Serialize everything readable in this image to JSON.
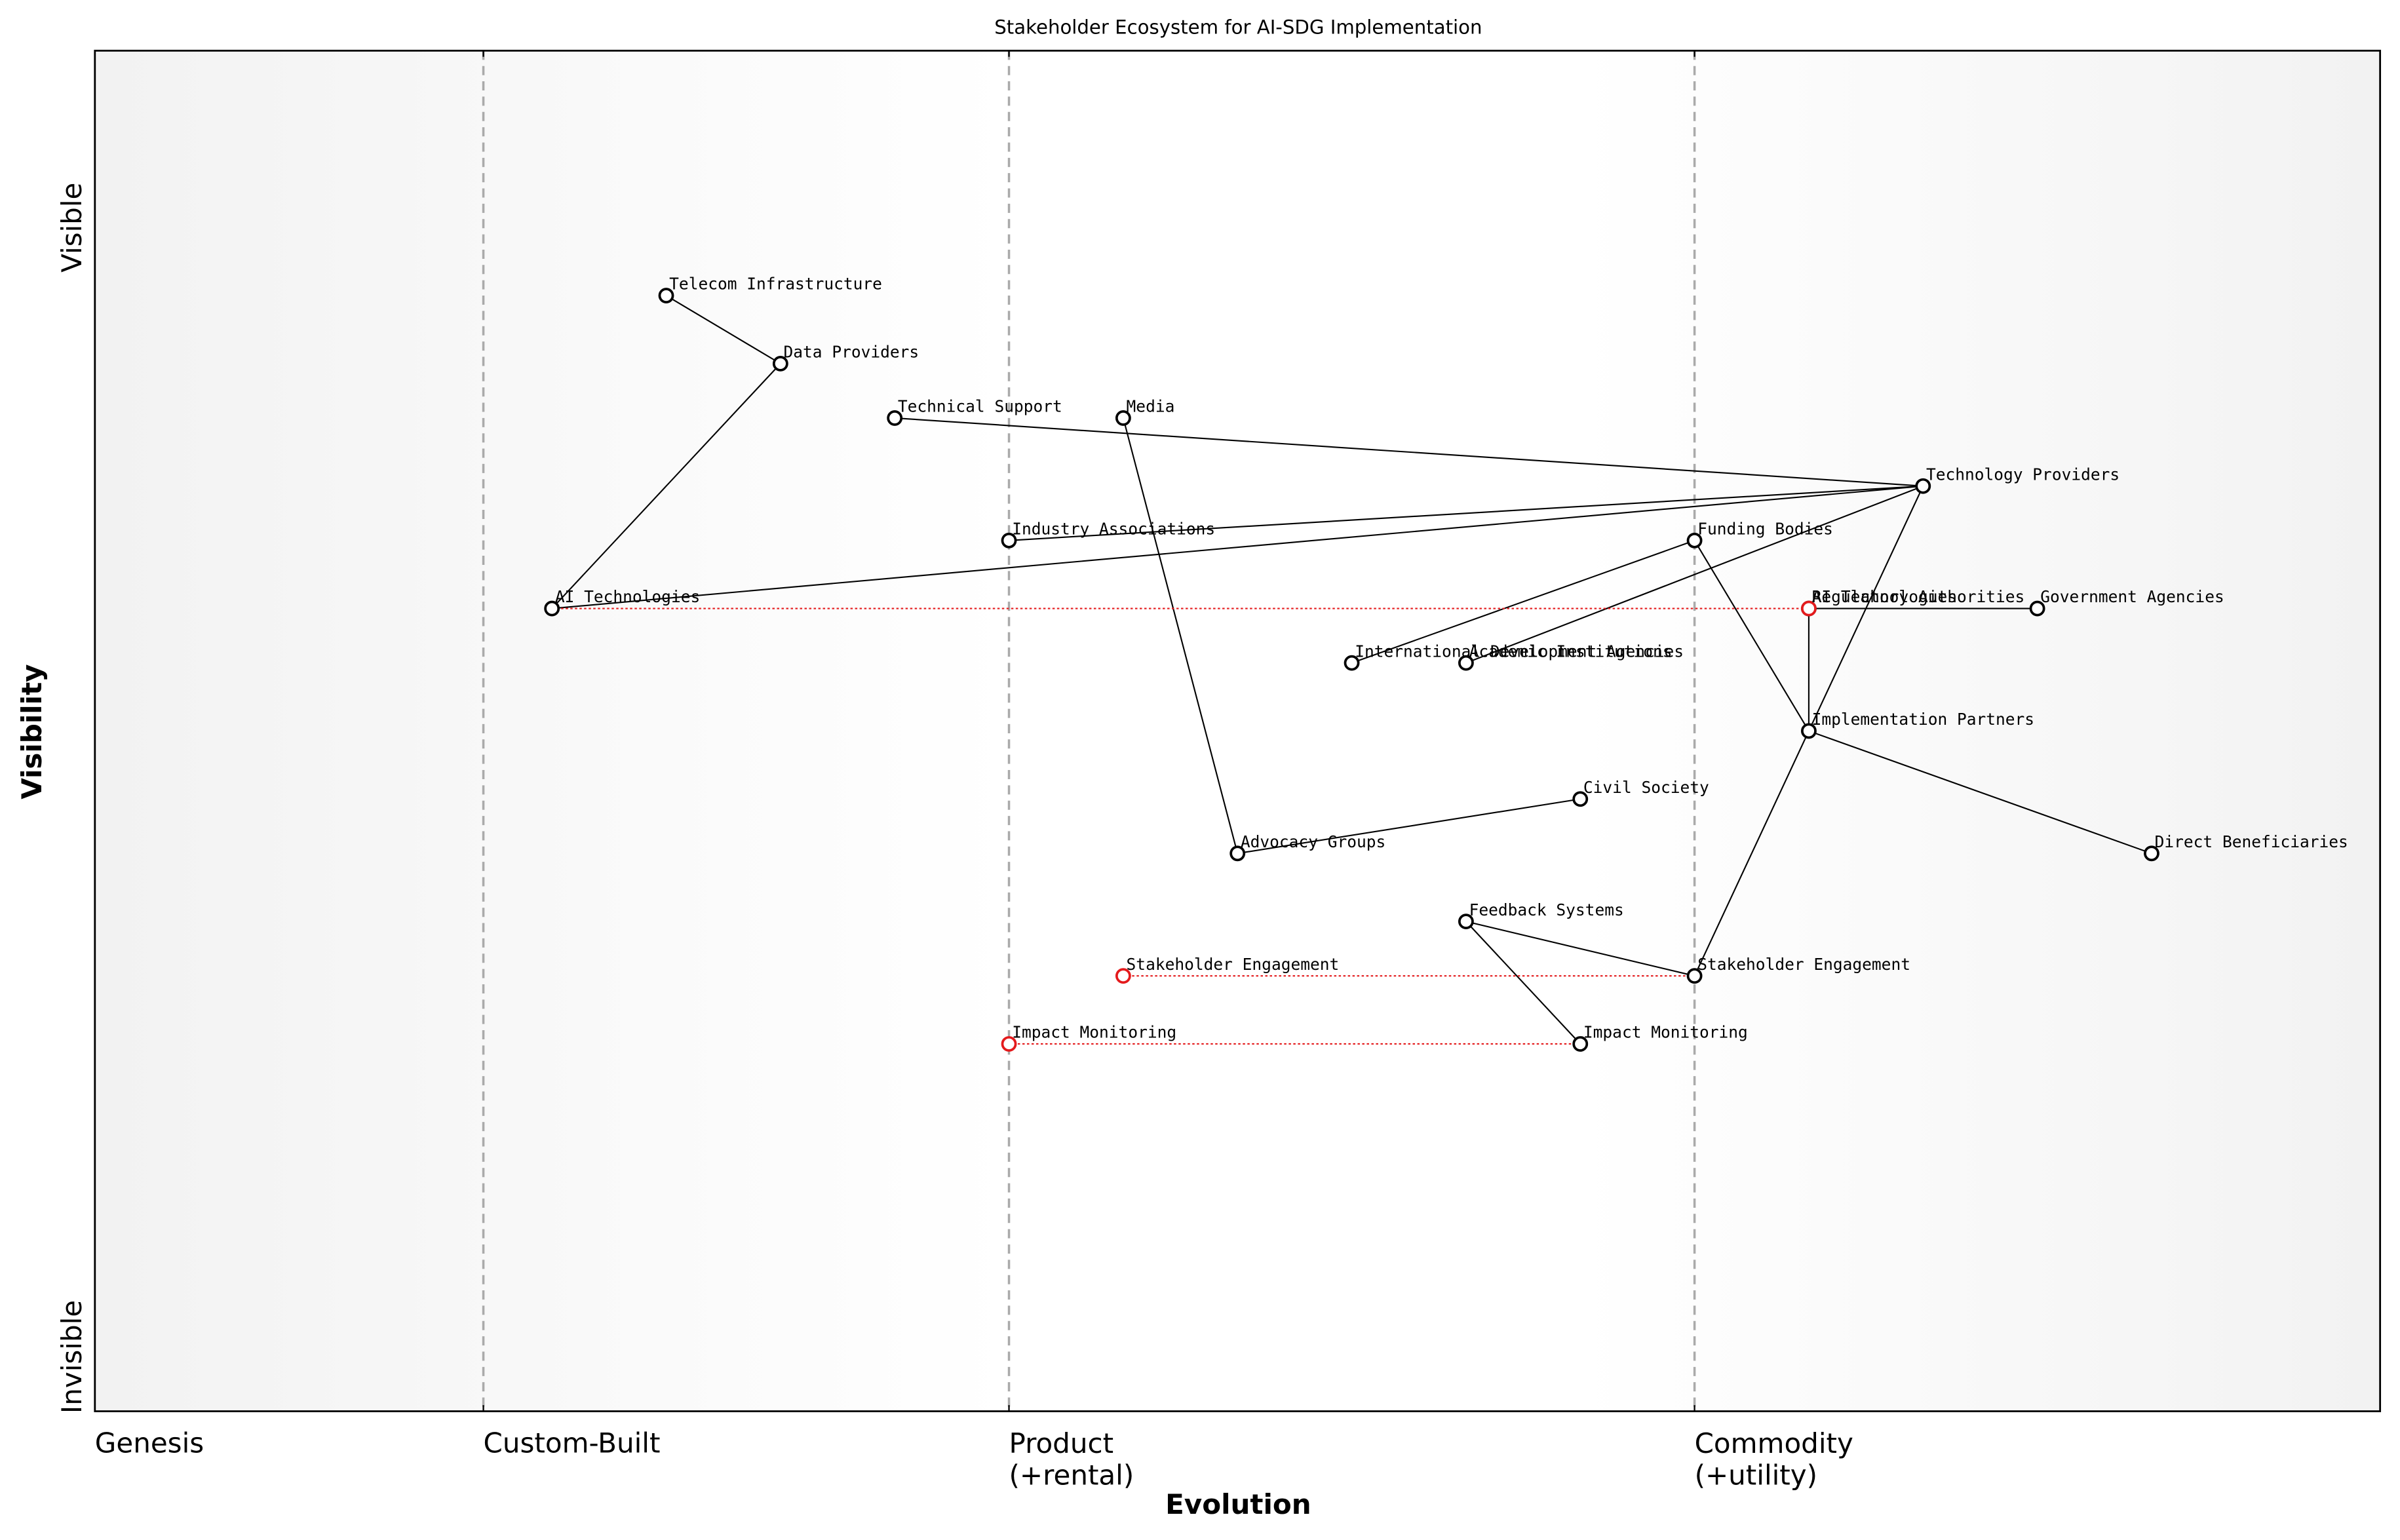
{
  "chart_data": {
    "type": "wardley",
    "title": "Stakeholder Ecosystem for AI-SDG Implementation",
    "xlabel": "Evolution",
    "ylabel": "Visibility",
    "xlim": [
      0,
      1
    ],
    "ylim": [
      0,
      1
    ],
    "xticks": [
      {
        "value": 0,
        "label": "Genesis"
      },
      {
        "value": 0.17,
        "label": "Custom-Built"
      },
      {
        "value": 0.4,
        "label": "Product\n(+rental)"
      },
      {
        "value": 0.7,
        "label": "Commodity\n(+utility)"
      }
    ],
    "yticks": [
      {
        "value": 0.87,
        "label": "Visible"
      },
      {
        "value": 0.04,
        "label": "Invisible"
      }
    ],
    "node_color": "#000000",
    "evolved_color": "#e41a1c",
    "nodes": [
      {
        "name": "Telecom Infrastructure",
        "x": 0.25,
        "y": 0.82
      },
      {
        "name": "Data Providers",
        "x": 0.3,
        "y": 0.77
      },
      {
        "name": "Technical Support",
        "x": 0.35,
        "y": 0.73
      },
      {
        "name": "Media",
        "x": 0.45,
        "y": 0.73
      },
      {
        "name": "Technology Providers",
        "x": 0.8,
        "y": 0.68
      },
      {
        "name": "Industry Associations",
        "x": 0.4,
        "y": 0.64
      },
      {
        "name": "Funding Bodies",
        "x": 0.7,
        "y": 0.64
      },
      {
        "name": "AI Technologies",
        "x": 0.2,
        "y": 0.59
      },
      {
        "name": "Regulatory Authorities",
        "x": 0.75,
        "y": 0.59
      },
      {
        "name": "Government Agencies",
        "x": 0.85,
        "y": 0.59
      },
      {
        "name": "International Development Agencies",
        "x": 0.55,
        "y": 0.55
      },
      {
        "name": "Academic Institutions",
        "x": 0.6,
        "y": 0.55
      },
      {
        "name": "Implementation Partners",
        "x": 0.75,
        "y": 0.5
      },
      {
        "name": "Civil Society",
        "x": 0.65,
        "y": 0.45
      },
      {
        "name": "Advocacy Groups",
        "x": 0.5,
        "y": 0.41
      },
      {
        "name": "Direct Beneficiaries",
        "x": 0.9,
        "y": 0.41
      },
      {
        "name": "Feedback Systems",
        "x": 0.6,
        "y": 0.36
      },
      {
        "name": "Stakeholder Engagement",
        "x": 0.7,
        "y": 0.32
      },
      {
        "name": "Impact Monitoring",
        "x": 0.65,
        "y": 0.27
      }
    ],
    "evolved_nodes": [
      {
        "name": "AI Technologies",
        "x": 0.75,
        "y": 0.59
      },
      {
        "name": "Stakeholder Engagement",
        "x": 0.45,
        "y": 0.32
      },
      {
        "name": "Impact Monitoring",
        "x": 0.4,
        "y": 0.27
      }
    ],
    "links": [
      {
        "from": "Telecom Infrastructure",
        "to": "Data Providers"
      },
      {
        "from": "Data Providers",
        "to": "AI Technologies"
      },
      {
        "from": "Technical Support",
        "to": "Technology Providers"
      },
      {
        "from": "Media",
        "to": "Advocacy Groups"
      },
      {
        "from": "Industry Associations",
        "to": "Technology Providers"
      },
      {
        "from": "AI Technologies",
        "to": "Technology Providers"
      },
      {
        "from": "Technology Providers",
        "to": "Academic Institutions"
      },
      {
        "from": "Technology Providers",
        "to": "Implementation Partners"
      },
      {
        "from": "Funding Bodies",
        "to": "International Development Agencies"
      },
      {
        "from": "Funding Bodies",
        "to": "Implementation Partners"
      },
      {
        "from": "Regulatory Authorities",
        "to": "Government Agencies"
      },
      {
        "from": "Regulatory Authorities",
        "to": "Implementation Partners"
      },
      {
        "from": "Implementation Partners",
        "to": "Direct Beneficiaries"
      },
      {
        "from": "Implementation Partners",
        "to": "Stakeholder Engagement"
      },
      {
        "from": "Advocacy Groups",
        "to": "Civil Society"
      },
      {
        "from": "Feedback Systems",
        "to": "Stakeholder Engagement"
      },
      {
        "from": "Feedback Systems",
        "to": "Impact Monitoring"
      }
    ]
  }
}
